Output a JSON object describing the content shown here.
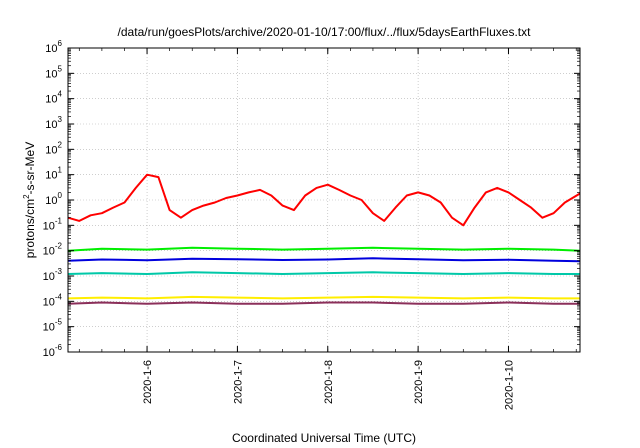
{
  "chart_data": {
    "type": "line",
    "title": "/data/run/goesPlots/archive/2020-01-10/17:00/flux/../flux/5daysEarthFluxes.txt",
    "xlabel": "Coordinated Universal Time (UTC)",
    "ylabel_main": "protons/cm",
    "ylabel_sup": "2",
    "ylabel_tail": "-s-sr-MeV",
    "y_scale": "log",
    "ylim": [
      1e-06,
      1000000.0
    ],
    "y_tick_base": "10",
    "y_tick_exponents": [
      "-6",
      "-5",
      "-4",
      "-3",
      "-2",
      "-1",
      "0",
      "1",
      "2",
      "3",
      "4",
      "5",
      "6"
    ],
    "xlim": [
      "2020-01-05T03:00",
      "2020-01-10T19:00"
    ],
    "x_ticks": [
      {
        "label": "2020-1-6",
        "date": "2020-01-06"
      },
      {
        "label": "2020-1-7",
        "date": "2020-01-07"
      },
      {
        "label": "2020-1-8",
        "date": "2020-01-08"
      },
      {
        "label": "2020-1-9",
        "date": "2020-01-09"
      },
      {
        "label": "2020-1-10",
        "date": "2020-01-10"
      }
    ],
    "grid": true,
    "legend": "none",
    "series": [
      {
        "color": "#ff0000",
        "x": [
          "2020-01-05T03:00",
          "2020-01-05T06:00",
          "2020-01-05T09:00",
          "2020-01-05T12:00",
          "2020-01-05T15:00",
          "2020-01-05T18:00",
          "2020-01-05T21:00",
          "2020-01-06T00:00",
          "2020-01-06T03:00",
          "2020-01-06T06:00",
          "2020-01-06T09:00",
          "2020-01-06T12:00",
          "2020-01-06T15:00",
          "2020-01-06T18:00",
          "2020-01-06T21:00",
          "2020-01-07T00:00",
          "2020-01-07T03:00",
          "2020-01-07T06:00",
          "2020-01-07T09:00",
          "2020-01-07T12:00",
          "2020-01-07T15:00",
          "2020-01-07T18:00",
          "2020-01-07T21:00",
          "2020-01-08T00:00",
          "2020-01-08T03:00",
          "2020-01-08T06:00",
          "2020-01-08T09:00",
          "2020-01-08T12:00",
          "2020-01-08T15:00",
          "2020-01-08T18:00",
          "2020-01-08T21:00",
          "2020-01-09T00:00",
          "2020-01-09T03:00",
          "2020-01-09T06:00",
          "2020-01-09T09:00",
          "2020-01-09T12:00",
          "2020-01-09T15:00",
          "2020-01-09T18:00",
          "2020-01-09T21:00",
          "2020-01-10T00:00",
          "2020-01-10T03:00",
          "2020-01-10T06:00",
          "2020-01-10T09:00",
          "2020-01-10T12:00",
          "2020-01-10T15:00",
          "2020-01-10T19:00"
        ],
        "y": [
          0.2,
          0.15,
          0.25,
          0.3,
          0.5,
          0.8,
          3,
          10,
          8,
          0.4,
          0.2,
          0.4,
          0.6,
          0.8,
          1.2,
          1.5,
          2,
          2.5,
          1.5,
          0.6,
          0.4,
          1.5,
          3,
          4,
          2.5,
          1.5,
          1,
          0.3,
          0.15,
          0.5,
          1.5,
          2,
          1.5,
          0.8,
          0.2,
          0.1,
          0.5,
          2,
          3,
          2,
          1,
          0.5,
          0.2,
          0.3,
          0.8,
          1.8
        ]
      },
      {
        "color": "#00ee00",
        "x": [
          "2020-01-05T03:00",
          "2020-01-05T12:00",
          "2020-01-06T00:00",
          "2020-01-06T12:00",
          "2020-01-07T00:00",
          "2020-01-07T12:00",
          "2020-01-08T00:00",
          "2020-01-08T12:00",
          "2020-01-09T00:00",
          "2020-01-09T12:00",
          "2020-01-10T00:00",
          "2020-01-10T12:00",
          "2020-01-10T19:00"
        ],
        "y": [
          0.01,
          0.012,
          0.011,
          0.013,
          0.012,
          0.011,
          0.012,
          0.013,
          0.012,
          0.011,
          0.012,
          0.011,
          0.01
        ]
      },
      {
        "color": "#0000dd",
        "x": [
          "2020-01-05T03:00",
          "2020-01-05T12:00",
          "2020-01-06T00:00",
          "2020-01-06T12:00",
          "2020-01-07T00:00",
          "2020-01-07T12:00",
          "2020-01-08T00:00",
          "2020-01-08T12:00",
          "2020-01-09T00:00",
          "2020-01-09T12:00",
          "2020-01-10T00:00",
          "2020-01-10T12:00",
          "2020-01-10T19:00"
        ],
        "y": [
          0.004,
          0.0045,
          0.0042,
          0.0048,
          0.0046,
          0.0043,
          0.0045,
          0.005,
          0.0046,
          0.0042,
          0.0044,
          0.004,
          0.0038
        ]
      },
      {
        "color": "#00c8a8",
        "x": [
          "2020-01-05T03:00",
          "2020-01-05T12:00",
          "2020-01-06T00:00",
          "2020-01-06T12:00",
          "2020-01-07T00:00",
          "2020-01-07T12:00",
          "2020-01-08T00:00",
          "2020-01-08T12:00",
          "2020-01-09T00:00",
          "2020-01-09T12:00",
          "2020-01-10T00:00",
          "2020-01-10T12:00",
          "2020-01-10T19:00"
        ],
        "y": [
          0.0012,
          0.0013,
          0.0012,
          0.0014,
          0.0013,
          0.0012,
          0.0013,
          0.0014,
          0.0013,
          0.0012,
          0.0013,
          0.0012,
          0.0012
        ]
      },
      {
        "color": "#ffee00",
        "x": [
          "2020-01-05T03:00",
          "2020-01-05T12:00",
          "2020-01-06T00:00",
          "2020-01-06T12:00",
          "2020-01-07T00:00",
          "2020-01-07T12:00",
          "2020-01-08T00:00",
          "2020-01-08T12:00",
          "2020-01-09T00:00",
          "2020-01-09T12:00",
          "2020-01-10T00:00",
          "2020-01-10T12:00",
          "2020-01-10T19:00"
        ],
        "y": [
          0.00013,
          0.00014,
          0.00013,
          0.00015,
          0.00014,
          0.00013,
          0.00014,
          0.00015,
          0.00014,
          0.00013,
          0.00014,
          0.00013,
          0.00013
        ]
      },
      {
        "color": "#8b2f5a",
        "x": [
          "2020-01-05T03:00",
          "2020-01-05T12:00",
          "2020-01-06T00:00",
          "2020-01-06T12:00",
          "2020-01-07T00:00",
          "2020-01-07T12:00",
          "2020-01-08T00:00",
          "2020-01-08T12:00",
          "2020-01-09T00:00",
          "2020-01-09T12:00",
          "2020-01-10T00:00",
          "2020-01-10T12:00",
          "2020-01-10T19:00"
        ],
        "y": [
          8e-05,
          9e-05,
          8e-05,
          9e-05,
          8e-05,
          8e-05,
          9e-05,
          9e-05,
          8e-05,
          8e-05,
          9e-05,
          8e-05,
          8e-05
        ]
      }
    ]
  }
}
